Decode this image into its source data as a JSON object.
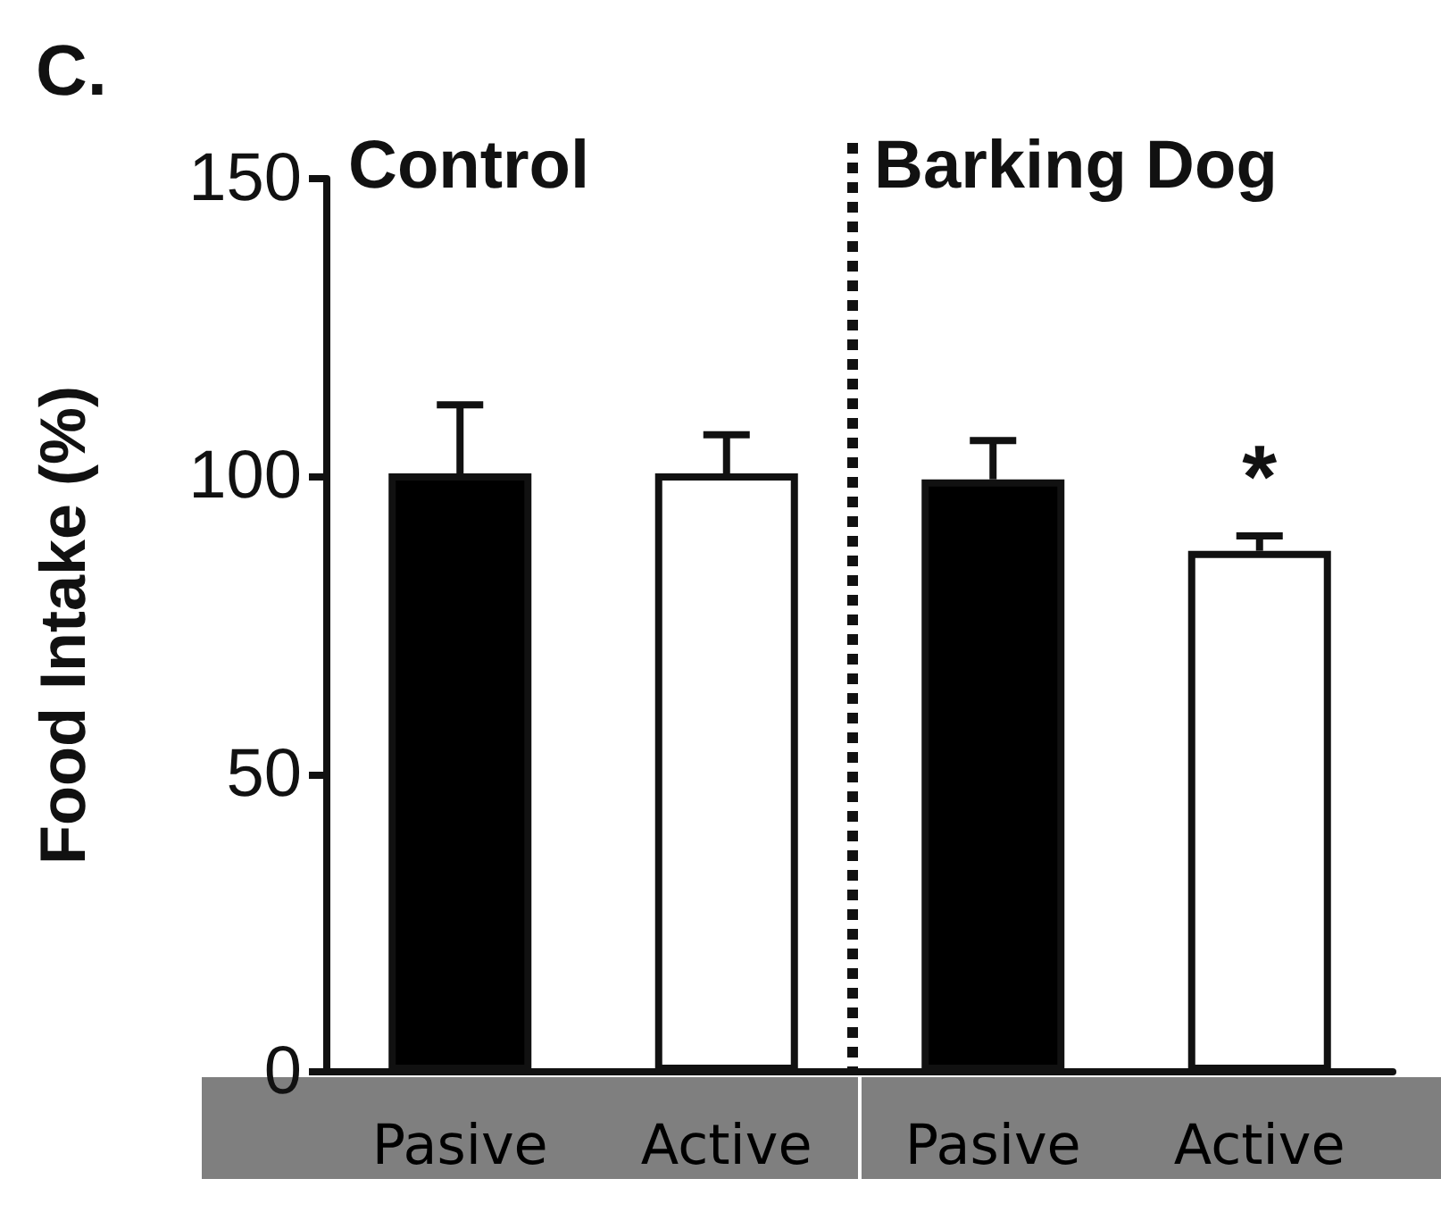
{
  "chart_data": {
    "type": "bar",
    "ylabel": "Food Intake (%)",
    "categories": [
      "Pasive",
      "Active",
      "Pasive",
      "Active"
    ],
    "values": [
      100.5,
      100.5,
      99.5,
      87.5
    ],
    "colors": [
      "#000000",
      "#ffffff",
      "#000000",
      "#ffffff"
    ],
    "errors": [
      11.5,
      6.5,
      6.5,
      2.5
    ],
    "ylim": [
      0,
      150
    ],
    "yticks": [
      0,
      50,
      100,
      150
    ],
    "annotations": [
      "C.",
      "Control",
      "Barking Dog",
      "*"
    ]
  }
}
